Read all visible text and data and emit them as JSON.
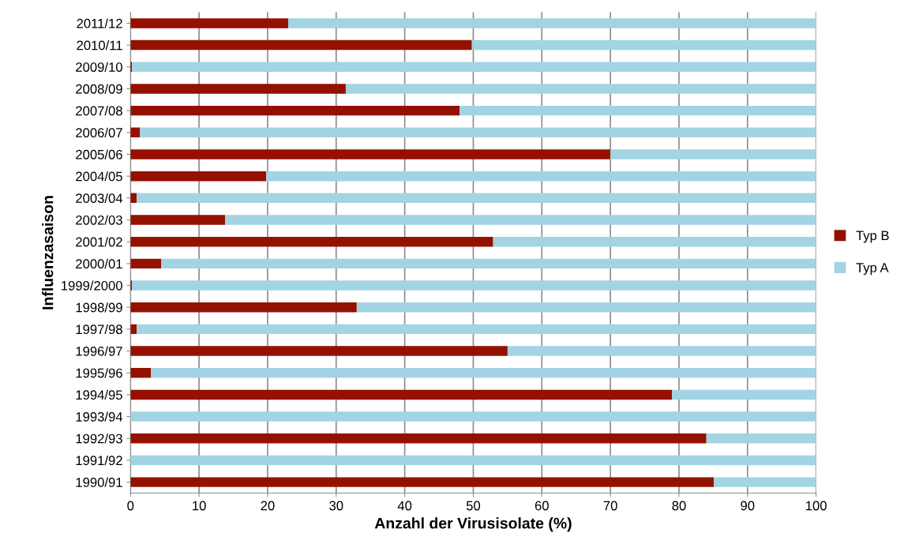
{
  "chart_data": {
    "type": "bar",
    "orientation": "horizontal",
    "stacked": true,
    "xlabel": "Anzahl der Virusisolate (%)",
    "ylabel": "Influenzasaison",
    "categories": [
      "2011/12",
      "2010/11",
      "2009/10",
      "2008/09",
      "2007/08",
      "2006/07",
      "2005/06",
      "2004/05",
      "2003/04",
      "2002/03",
      "2001/02",
      "2000/01",
      "1999/2000",
      "1998/99",
      "1997/98",
      "1996/97",
      "1995/96",
      "1994/95",
      "1993/94",
      "1992/93",
      "1991/92",
      "1990/91"
    ],
    "series": [
      {
        "name": "Typ B",
        "color": "#941100",
        "values": [
          23,
          49.8,
          0.2,
          31.4,
          48,
          1.4,
          70,
          19.8,
          0.9,
          13.8,
          52.9,
          4.5,
          0.2,
          33,
          0.9,
          55,
          3,
          79,
          0,
          84,
          0,
          85.1
        ]
      },
      {
        "name": "Typ A",
        "color": "#a2d4e3",
        "values": [
          77,
          50.2,
          99.8,
          68.6,
          52,
          98.6,
          30,
          80.2,
          99.1,
          86.2,
          47.1,
          95.5,
          99.8,
          67,
          99.1,
          45,
          97,
          21,
          100,
          16,
          100,
          14.9
        ]
      }
    ],
    "xlim": [
      0,
      100
    ],
    "xticks": [
      0,
      10,
      20,
      30,
      40,
      50,
      60,
      70,
      80,
      90,
      100
    ],
    "grid": "x",
    "legend": "right"
  }
}
